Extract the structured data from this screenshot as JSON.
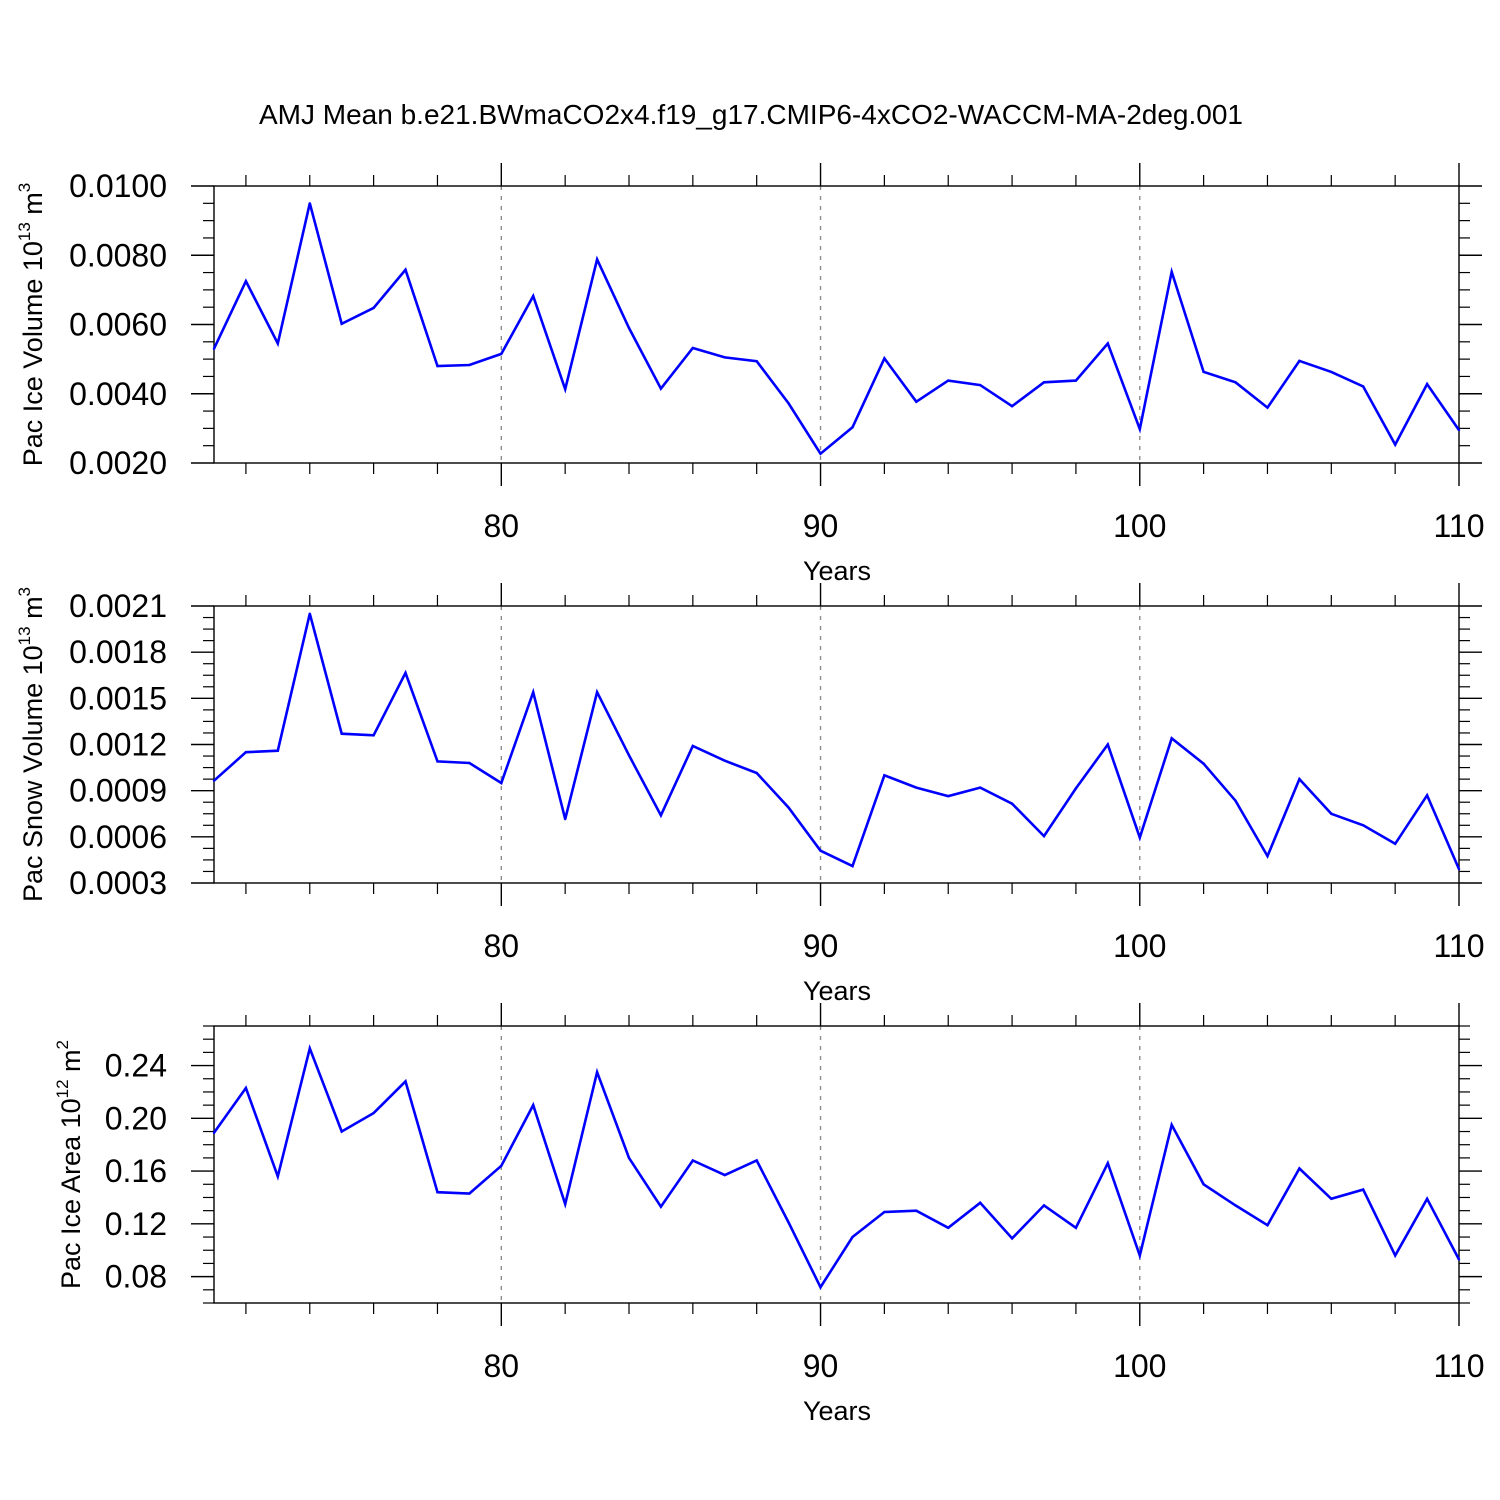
{
  "title": "AMJ Mean b.e21.BWmaCO2x4.f19_g17.CMIP6-4xCO2-WACCM-MA-2deg.001",
  "colors": {
    "line": "#0000ff",
    "axes": "#000000",
    "grid": "#8c8c8c"
  },
  "chart_data": [
    {
      "type": "line",
      "xlabel": "Years",
      "ylabel": {
        "text": "Pac Ice Volume 10",
        "sup": "13",
        "unit": " m",
        "unit_sup": "3"
      },
      "xlim": [
        71,
        110
      ],
      "ylim": [
        0.002,
        0.01
      ],
      "xticks": [
        80,
        90,
        100,
        110
      ],
      "xtick_labels": [
        "80",
        "90",
        "100",
        "110"
      ],
      "yticks": [
        0.002,
        0.004,
        0.006,
        0.008,
        0.01
      ],
      "ytick_labels": [
        "0.0020",
        "0.0040",
        "0.0060",
        "0.0080",
        "0.0100"
      ],
      "grid": "vertical dashed at major x ticks",
      "series": [
        {
          "x": [
            71,
            72,
            73,
            74,
            75,
            76,
            77,
            78,
            79,
            80,
            81,
            82,
            83,
            84,
            85,
            86,
            87,
            88,
            89,
            90,
            91,
            92,
            93,
            94,
            95,
            96,
            97,
            98,
            99,
            100,
            101,
            102,
            103,
            104,
            105,
            106,
            107,
            108,
            109,
            110
          ],
          "values": [
            0.0053,
            0.00725,
            0.00545,
            0.0095,
            0.00602,
            0.00648,
            0.00758,
            0.0048,
            0.00483,
            0.00515,
            0.00682,
            0.00413,
            0.00788,
            0.0059,
            0.00415,
            0.00532,
            0.00505,
            0.00494,
            0.00372,
            0.00227,
            0.00303,
            0.00502,
            0.00377,
            0.00438,
            0.00425,
            0.00364,
            0.00433,
            0.00438,
            0.00545,
            0.00298,
            0.00752,
            0.00463,
            0.00433,
            0.0036,
            0.00495,
            0.00463,
            0.00421,
            0.00253,
            0.00428,
            0.00295
          ]
        }
      ]
    },
    {
      "type": "line",
      "xlabel": "Years",
      "ylabel": {
        "text": "Pac Snow Volume 10",
        "sup": "13",
        "unit": " m",
        "unit_sup": "3"
      },
      "xlim": [
        71,
        110
      ],
      "ylim": [
        0.0003,
        0.0021
      ],
      "xticks": [
        80,
        90,
        100,
        110
      ],
      "xtick_labels": [
        "80",
        "90",
        "100",
        "110"
      ],
      "yticks": [
        0.0003,
        0.0006,
        0.0009,
        0.0012,
        0.0015,
        0.0018,
        0.0021
      ],
      "ytick_labels": [
        "0.0003",
        "0.0006",
        "0.0009",
        "0.0012",
        "0.0015",
        "0.0018",
        "0.0021"
      ],
      "grid": "vertical dashed at major x ticks",
      "series": [
        {
          "x": [
            71,
            72,
            73,
            74,
            75,
            76,
            77,
            78,
            79,
            80,
            81,
            82,
            83,
            84,
            85,
            86,
            87,
            88,
            89,
            90,
            91,
            92,
            93,
            94,
            95,
            96,
            97,
            98,
            99,
            100,
            101,
            102,
            103,
            104,
            105,
            106,
            107,
            108,
            109,
            110
          ],
          "values": [
            0.000965,
            0.00115,
            0.00116,
            0.00205,
            0.00127,
            0.00126,
            0.001665,
            0.00109,
            0.00108,
            0.00095,
            0.00154,
            0.000715,
            0.00154,
            0.00113,
            0.00074,
            0.00119,
            0.001095,
            0.001015,
            0.00079,
            0.00051,
            0.00041,
            0.001,
            0.00092,
            0.000865,
            0.00092,
            0.000815,
            0.000605,
            0.000915,
            0.0012,
            0.000595,
            0.00124,
            0.001075,
            0.000835,
            0.000475,
            0.000975,
            0.00075,
            0.000675,
            0.000555,
            0.00087,
            0.00039
          ]
        }
      ]
    },
    {
      "type": "line",
      "xlabel": "Years",
      "ylabel": {
        "text": "Pac Ice Area 10",
        "sup": "12",
        "unit": " m",
        "unit_sup": "2"
      },
      "xlim": [
        71,
        110
      ],
      "ylim": [
        0.06,
        0.27
      ],
      "xticks": [
        80,
        90,
        100,
        110
      ],
      "xtick_labels": [
        "80",
        "90",
        "100",
        "110"
      ],
      "yticks": [
        0.08,
        0.12,
        0.16,
        0.2,
        0.24
      ],
      "ytick_labels": [
        "0.08",
        "0.12",
        "0.16",
        "0.20",
        "0.24"
      ],
      "grid": "vertical dashed at major x ticks",
      "series": [
        {
          "x": [
            71,
            72,
            73,
            74,
            75,
            76,
            77,
            78,
            79,
            80,
            81,
            82,
            83,
            84,
            85,
            86,
            87,
            88,
            89,
            90,
            91,
            92,
            93,
            94,
            95,
            96,
            97,
            98,
            99,
            100,
            101,
            102,
            103,
            104,
            105,
            106,
            107,
            108,
            109,
            110
          ],
          "values": [
            0.189,
            0.223,
            0.156,
            0.253,
            0.19,
            0.204,
            0.228,
            0.144,
            0.143,
            0.164,
            0.21,
            0.135,
            0.235,
            0.17,
            0.133,
            0.168,
            0.157,
            0.168,
            0.121,
            0.072,
            0.11,
            0.129,
            0.13,
            0.117,
            0.136,
            0.109,
            0.134,
            0.117,
            0.166,
            0.096,
            0.195,
            0.15,
            0.134,
            0.119,
            0.162,
            0.139,
            0.146,
            0.096,
            0.139,
            0.093
          ]
        }
      ]
    }
  ]
}
